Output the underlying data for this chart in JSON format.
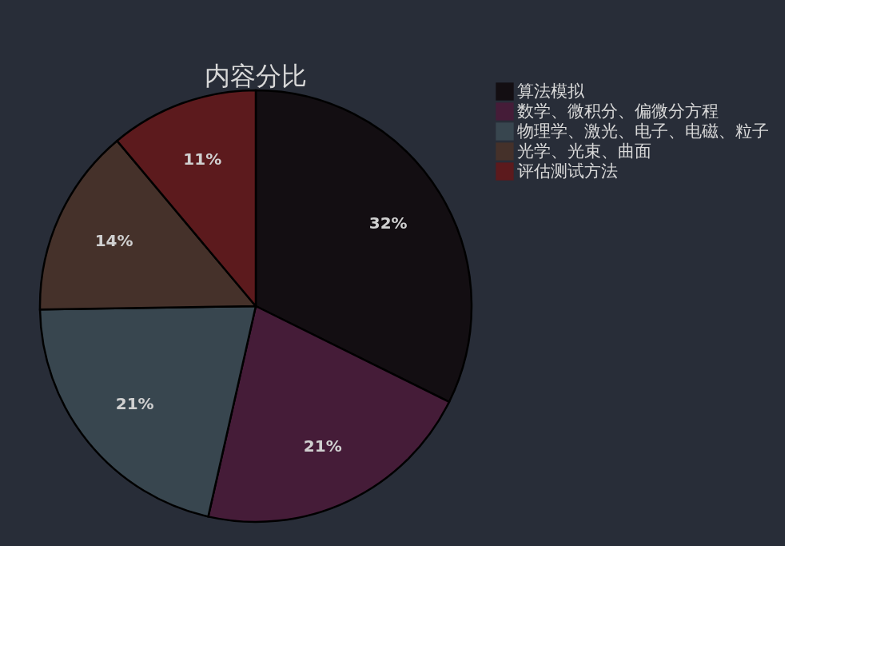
{
  "chart_data": {
    "type": "pie",
    "title": "内容分比",
    "categories": [
      "算法模拟",
      "数学、微积分、偏微分方程",
      "物理学、激光、电子、电磁、粒子",
      "光学、光束、曲面",
      "评估测试方法"
    ],
    "values": [
      32,
      21,
      21,
      14,
      11
    ],
    "value_labels": [
      "32%",
      "21%",
      "21%",
      "14%",
      "11%"
    ],
    "colors": [
      "#130e12",
      "#451c38",
      "#38464f",
      "#45312a",
      "#5c1a1d"
    ],
    "legend": "right"
  }
}
